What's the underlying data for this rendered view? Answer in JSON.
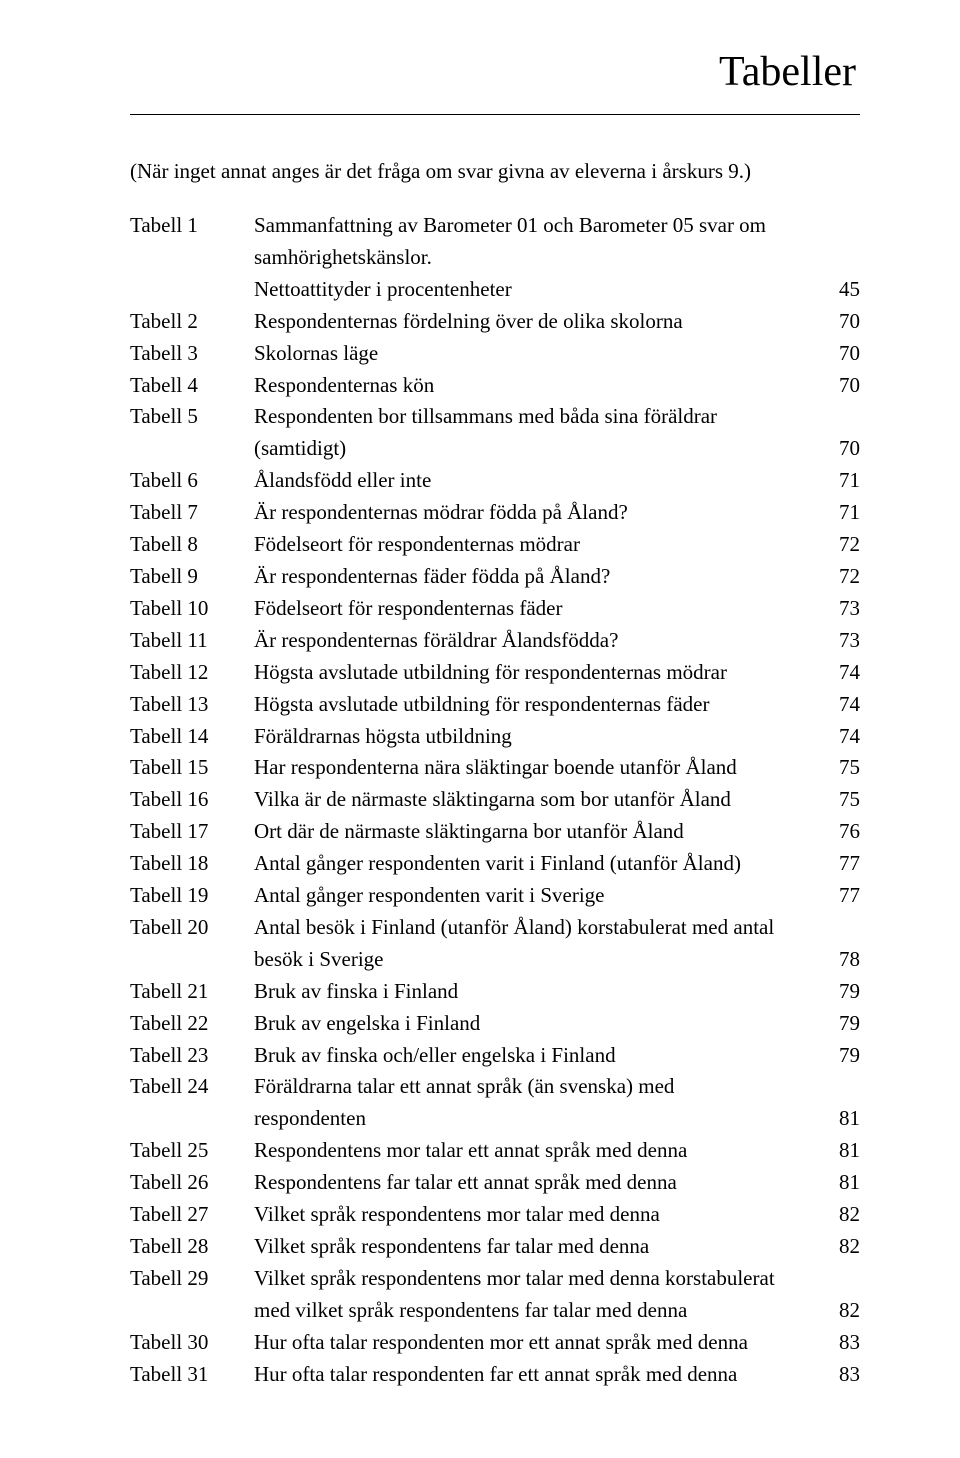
{
  "title": "Tabeller",
  "note": "(När inget annat anges är det fråga om svar givna av eleverna i årskurs 9.)",
  "rows": [
    {
      "label": "Tabell 1",
      "desc": "Sammanfattning av Barometer 01 och Barometer 05 svar om",
      "page": ""
    },
    {
      "label": "",
      "desc": "samhörighetskänslor.",
      "page": "",
      "cont": true
    },
    {
      "label": "",
      "desc": "Nettoattityder i procentenheter",
      "page": "45",
      "cont": true
    },
    {
      "label": "Tabell 2",
      "desc": "Respondenternas fördelning över de olika skolorna",
      "page": "70"
    },
    {
      "label": "Tabell 3",
      "desc": "Skolornas läge",
      "page": "70"
    },
    {
      "label": "Tabell 4",
      "desc": "Respondenternas kön",
      "page": "70"
    },
    {
      "label": "Tabell 5",
      "desc": "Respondenten bor tillsammans med båda sina föräldrar",
      "page": ""
    },
    {
      "label": "",
      "desc": "(samtidigt)",
      "page": "70",
      "cont": true
    },
    {
      "label": "Tabell 6",
      "desc": "Ålandsfödd eller inte",
      "page": "71"
    },
    {
      "label": "Tabell 7",
      "desc": "Är respondenternas mödrar födda på Åland?",
      "page": "71"
    },
    {
      "label": "Tabell 8",
      "desc": "Födelseort för respondenternas mödrar",
      "page": "72"
    },
    {
      "label": "Tabell 9",
      "desc": "Är respondenternas fäder födda på Åland?",
      "page": "72"
    },
    {
      "label": "Tabell 10",
      "desc": "Födelseort för respondenternas fäder",
      "page": "73"
    },
    {
      "label": "Tabell 11",
      "desc": "Är respondenternas föräldrar Ålandsfödda?",
      "page": "73"
    },
    {
      "label": "Tabell 12",
      "desc": "Högsta avslutade utbildning för respondenternas mödrar",
      "page": "74"
    },
    {
      "label": "Tabell 13",
      "desc": "Högsta avslutade utbildning för respondenternas fäder",
      "page": "74"
    },
    {
      "label": "Tabell 14",
      "desc": "Föräldrarnas högsta utbildning",
      "page": "74"
    },
    {
      "label": "Tabell 15",
      "desc": "Har respondenterna nära släktingar boende utanför Åland",
      "page": "75"
    },
    {
      "label": "Tabell 16",
      "desc": "Vilka är de närmaste släktingarna som bor utanför Åland",
      "page": "75"
    },
    {
      "label": "Tabell 17",
      "desc": "Ort där de närmaste släktingarna bor utanför Åland",
      "page": "76"
    },
    {
      "label": "Tabell 18",
      "desc": "Antal gånger respondenten varit i Finland (utanför Åland)",
      "page": "77"
    },
    {
      "label": "Tabell 19",
      "desc": "Antal gånger respondenten varit i Sverige",
      "page": "77"
    },
    {
      "label": "Tabell 20",
      "desc": "Antal besök i Finland (utanför Åland) korstabulerat med antal",
      "page": ""
    },
    {
      "label": "",
      "desc": "besök i Sverige",
      "page": "78",
      "cont": true
    },
    {
      "label": "Tabell 21",
      "desc": "Bruk av finska i Finland",
      "page": "79"
    },
    {
      "label": "Tabell 22",
      "desc": "Bruk av engelska i Finland",
      "page": "79"
    },
    {
      "label": "Tabell 23",
      "desc": "Bruk av finska och/eller engelska i Finland",
      "page": "79"
    },
    {
      "label": "Tabell 24",
      "desc": "Föräldrarna talar ett annat språk (än svenska) med",
      "page": ""
    },
    {
      "label": "",
      "desc": "respondenten",
      "page": "81",
      "cont": true
    },
    {
      "label": "Tabell 25",
      "desc": "Respondentens mor talar ett annat språk med denna",
      "page": "81"
    },
    {
      "label": "Tabell 26",
      "desc": "Respondentens far talar ett annat språk med denna",
      "page": "81"
    },
    {
      "label": "Tabell 27",
      "desc": "Vilket språk respondentens mor talar med denna",
      "page": "82"
    },
    {
      "label": "Tabell 28",
      "desc": "Vilket språk respondentens far talar med denna",
      "page": "82"
    },
    {
      "label": "Tabell 29",
      "desc": "Vilket språk respondentens mor talar med denna korstabulerat",
      "page": ""
    },
    {
      "label": "",
      "desc": "med vilket språk respondentens far talar med denna",
      "page": "82",
      "cont": true
    },
    {
      "label": "Tabell 30",
      "desc": "Hur ofta talar respondenten mor ett annat språk med denna",
      "page": "83"
    },
    {
      "label": "Tabell 31",
      "desc": "Hur ofta talar respondenten far ett annat språk med denna",
      "page": "83"
    }
  ]
}
